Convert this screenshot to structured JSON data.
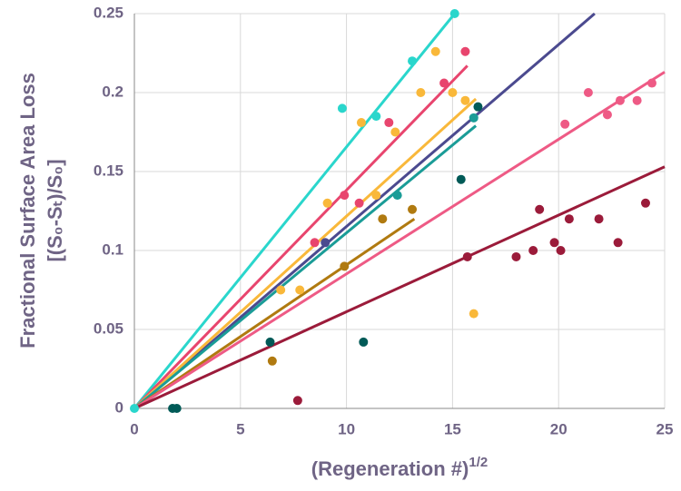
{
  "chart_data": {
    "type": "scatter",
    "x_label": "(Regeneration #)",
    "x_label_superscript": "1/2",
    "y_label": [
      "Fractional Surface Area Loss",
      "[(S₀-Sₜ)/S₀]"
    ],
    "xlim": [
      0,
      25
    ],
    "ylim": [
      0,
      0.25
    ],
    "xticks": [
      0,
      5,
      10,
      15,
      20,
      25
    ],
    "yticks": [
      0,
      0.05,
      0.1,
      0.15,
      0.2,
      0.25
    ],
    "grid": true,
    "series": [
      {
        "color": "#2ad6cc",
        "x": [
          0,
          9.8,
          11.4,
          13.1,
          15.1
        ],
        "values": [
          0,
          0.19,
          0.185,
          0.22,
          0.25
        ],
        "fit_x": [
          0,
          15.1
        ],
        "fit_y": [
          0,
          0.25
        ]
      },
      {
        "color": "#e8456e",
        "x": [
          8.5,
          9.9,
          12.0,
          14.6,
          15.6,
          10.6
        ],
        "values": [
          0.105,
          0.135,
          0.181,
          0.206,
          0.226,
          0.13
        ],
        "fit_x": [
          0,
          15.7
        ],
        "fit_y": [
          0,
          0.217
        ]
      },
      {
        "color": "#4b4a8f",
        "x": [
          9.0
        ],
        "values": [
          0.105
        ],
        "fit_x": [
          0,
          21.7
        ],
        "fit_y": [
          0,
          0.25
        ]
      },
      {
        "color": "#f9b83a",
        "x": [
          6.9,
          7.8,
          9.1,
          10.7,
          11.4,
          12.3,
          13.5,
          14.2,
          15.0,
          15.6,
          16.0
        ],
        "values": [
          0.075,
          0.075,
          0.13,
          0.181,
          0.135,
          0.175,
          0.2,
          0.226,
          0.2,
          0.195,
          0.06
        ],
        "fit_x": [
          0,
          16.1
        ],
        "fit_y": [
          0,
          0.196
        ]
      },
      {
        "color": "#1a9c97",
        "x": [
          12.4,
          16.0
        ],
        "values": [
          0.135,
          0.184
        ],
        "fit_x": [
          0,
          16.1
        ],
        "fit_y": [
          0,
          0.179
        ]
      },
      {
        "color": "#b07a10",
        "x": [
          6.5,
          9.9,
          11.7,
          13.1
        ],
        "values": [
          0.03,
          0.09,
          0.12,
          0.126
        ],
        "fit_x": [
          0,
          13.2
        ],
        "fit_y": [
          0,
          0.12
        ]
      },
      {
        "color": "#ee5a85",
        "x": [
          20.3,
          21.4,
          22.3,
          22.9,
          23.7,
          24.4
        ],
        "values": [
          0.18,
          0.2,
          0.186,
          0.195,
          0.195,
          0.206
        ],
        "fit_x": [
          0,
          25
        ],
        "fit_y": [
          0,
          0.213
        ]
      },
      {
        "color": "#9b1b3a",
        "x": [
          7.7,
          15.7,
          18.0,
          18.8,
          19.1,
          19.8,
          20.1,
          20.5,
          21.9,
          22.8,
          24.1
        ],
        "values": [
          0.005,
          0.096,
          0.096,
          0.1,
          0.126,
          0.105,
          0.1,
          0.12,
          0.12,
          0.105,
          0.13
        ],
        "fit_x": [
          0,
          25
        ],
        "fit_y": [
          0,
          0.153
        ]
      },
      {
        "color": "#005a57",
        "x": [
          1.8,
          2.0,
          6.4,
          10.8,
          15.4,
          16.2
        ],
        "values": [
          0,
          0,
          0.042,
          0.042,
          0.145,
          0.191
        ],
        "fit_x": [],
        "fit_y": []
      }
    ]
  }
}
